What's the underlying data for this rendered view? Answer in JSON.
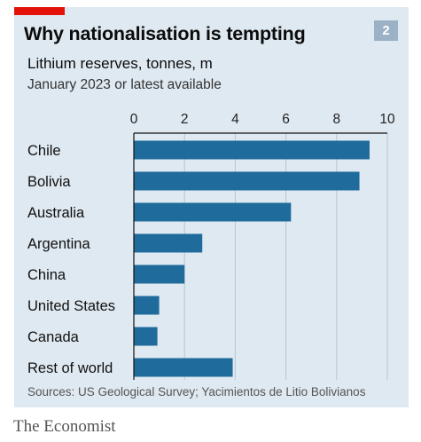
{
  "header": {
    "title": "Why nationalisation is tempting",
    "badge": "2",
    "subtitle": "Lithium reserves, tonnes, m",
    "date_note": "January 2023 or latest available"
  },
  "footer": {
    "source": "Sources: US Geological Survey; Yacimientos de Litio Bolivianos",
    "brand": "The Economist"
  },
  "colors": {
    "bar": "#1f6b9b",
    "panel": "#dfe9f1",
    "accent": "#e3120b",
    "grid": "#b7c6d3",
    "axis": "#111111"
  },
  "chart_data": {
    "type": "bar",
    "orientation": "horizontal",
    "categories": [
      "Chile",
      "Bolivia",
      "Australia",
      "Argentina",
      "China",
      "United States",
      "Canada",
      "Rest of world"
    ],
    "values": [
      9.3,
      8.9,
      6.2,
      2.7,
      2.0,
      1.0,
      0.93,
      3.9
    ],
    "xlim": [
      0,
      10
    ],
    "xticks": [
      "0",
      "2",
      "4",
      "6",
      "8",
      "10"
    ],
    "tick_values": [
      0,
      2,
      4,
      6,
      8,
      10
    ],
    "grid": true,
    "axis_position": "top"
  }
}
